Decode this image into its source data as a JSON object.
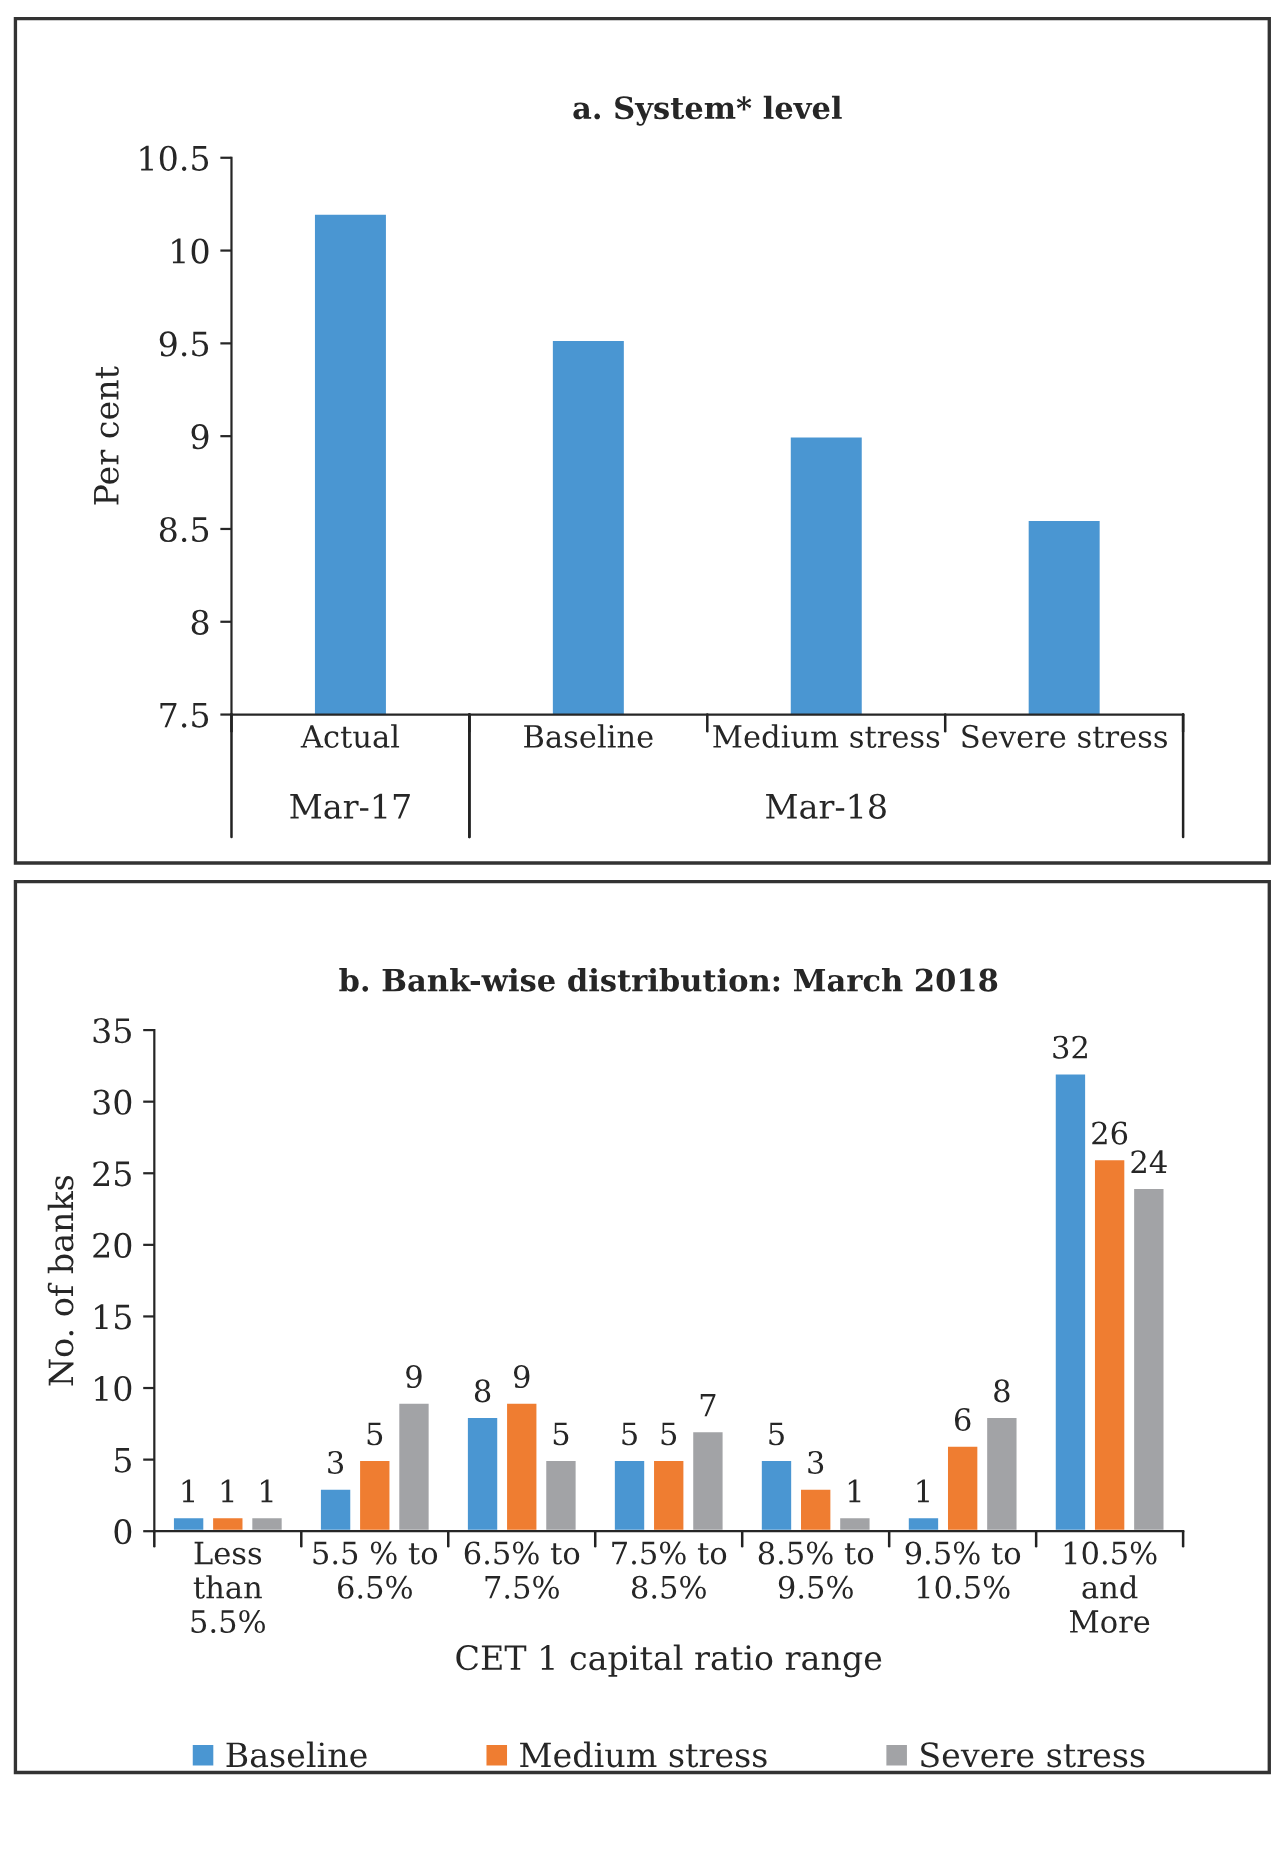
{
  "chart_data": [
    {
      "type": "bar",
      "title": "a. System* level",
      "ylabel": "Per cent",
      "categories": [
        "Actual",
        "Baseline",
        "Medium stress",
        "Severe stress"
      ],
      "values": [
        10.2,
        9.52,
        9.0,
        8.55
      ],
      "color": "#4a96d2",
      "ylim": [
        7.5,
        10.5
      ],
      "yticks": [
        7.5,
        8,
        8.5,
        9,
        9.5,
        10,
        10.5
      ],
      "grid": false,
      "legend": false,
      "annotations": [
        "Mar-17",
        "Mar-18"
      ]
    },
    {
      "type": "bar",
      "title": "b. Bank-wise distribution: March 2018",
      "xlabel": "CET 1 capital ratio range",
      "ylabel": "No. of banks",
      "categories": [
        "Less\nthan\n5.5%",
        "5.5 % to\n6.5%",
        "6.5% to\n7.5%",
        "7.5% to\n8.5%",
        "8.5% to\n9.5%",
        "9.5% to\n10.5%",
        "10.5%\nand\nMore"
      ],
      "series": [
        {
          "name": "Baseline",
          "color": "#4a96d2",
          "values": [
            1,
            3,
            8,
            5,
            5,
            1,
            32
          ]
        },
        {
          "name": "Medium stress",
          "color": "#ef7d31",
          "values": [
            1,
            5,
            9,
            5,
            3,
            6,
            26
          ]
        },
        {
          "name": "Severe stress",
          "color": "#a2a3a6",
          "values": [
            1,
            9,
            5,
            7,
            1,
            8,
            24
          ]
        }
      ],
      "ylim": [
        0,
        35
      ],
      "yticks": [
        0,
        5,
        10,
        15,
        20,
        25,
        30,
        35
      ],
      "grid": false,
      "legend": "bottom",
      "data_labels": true
    }
  ]
}
